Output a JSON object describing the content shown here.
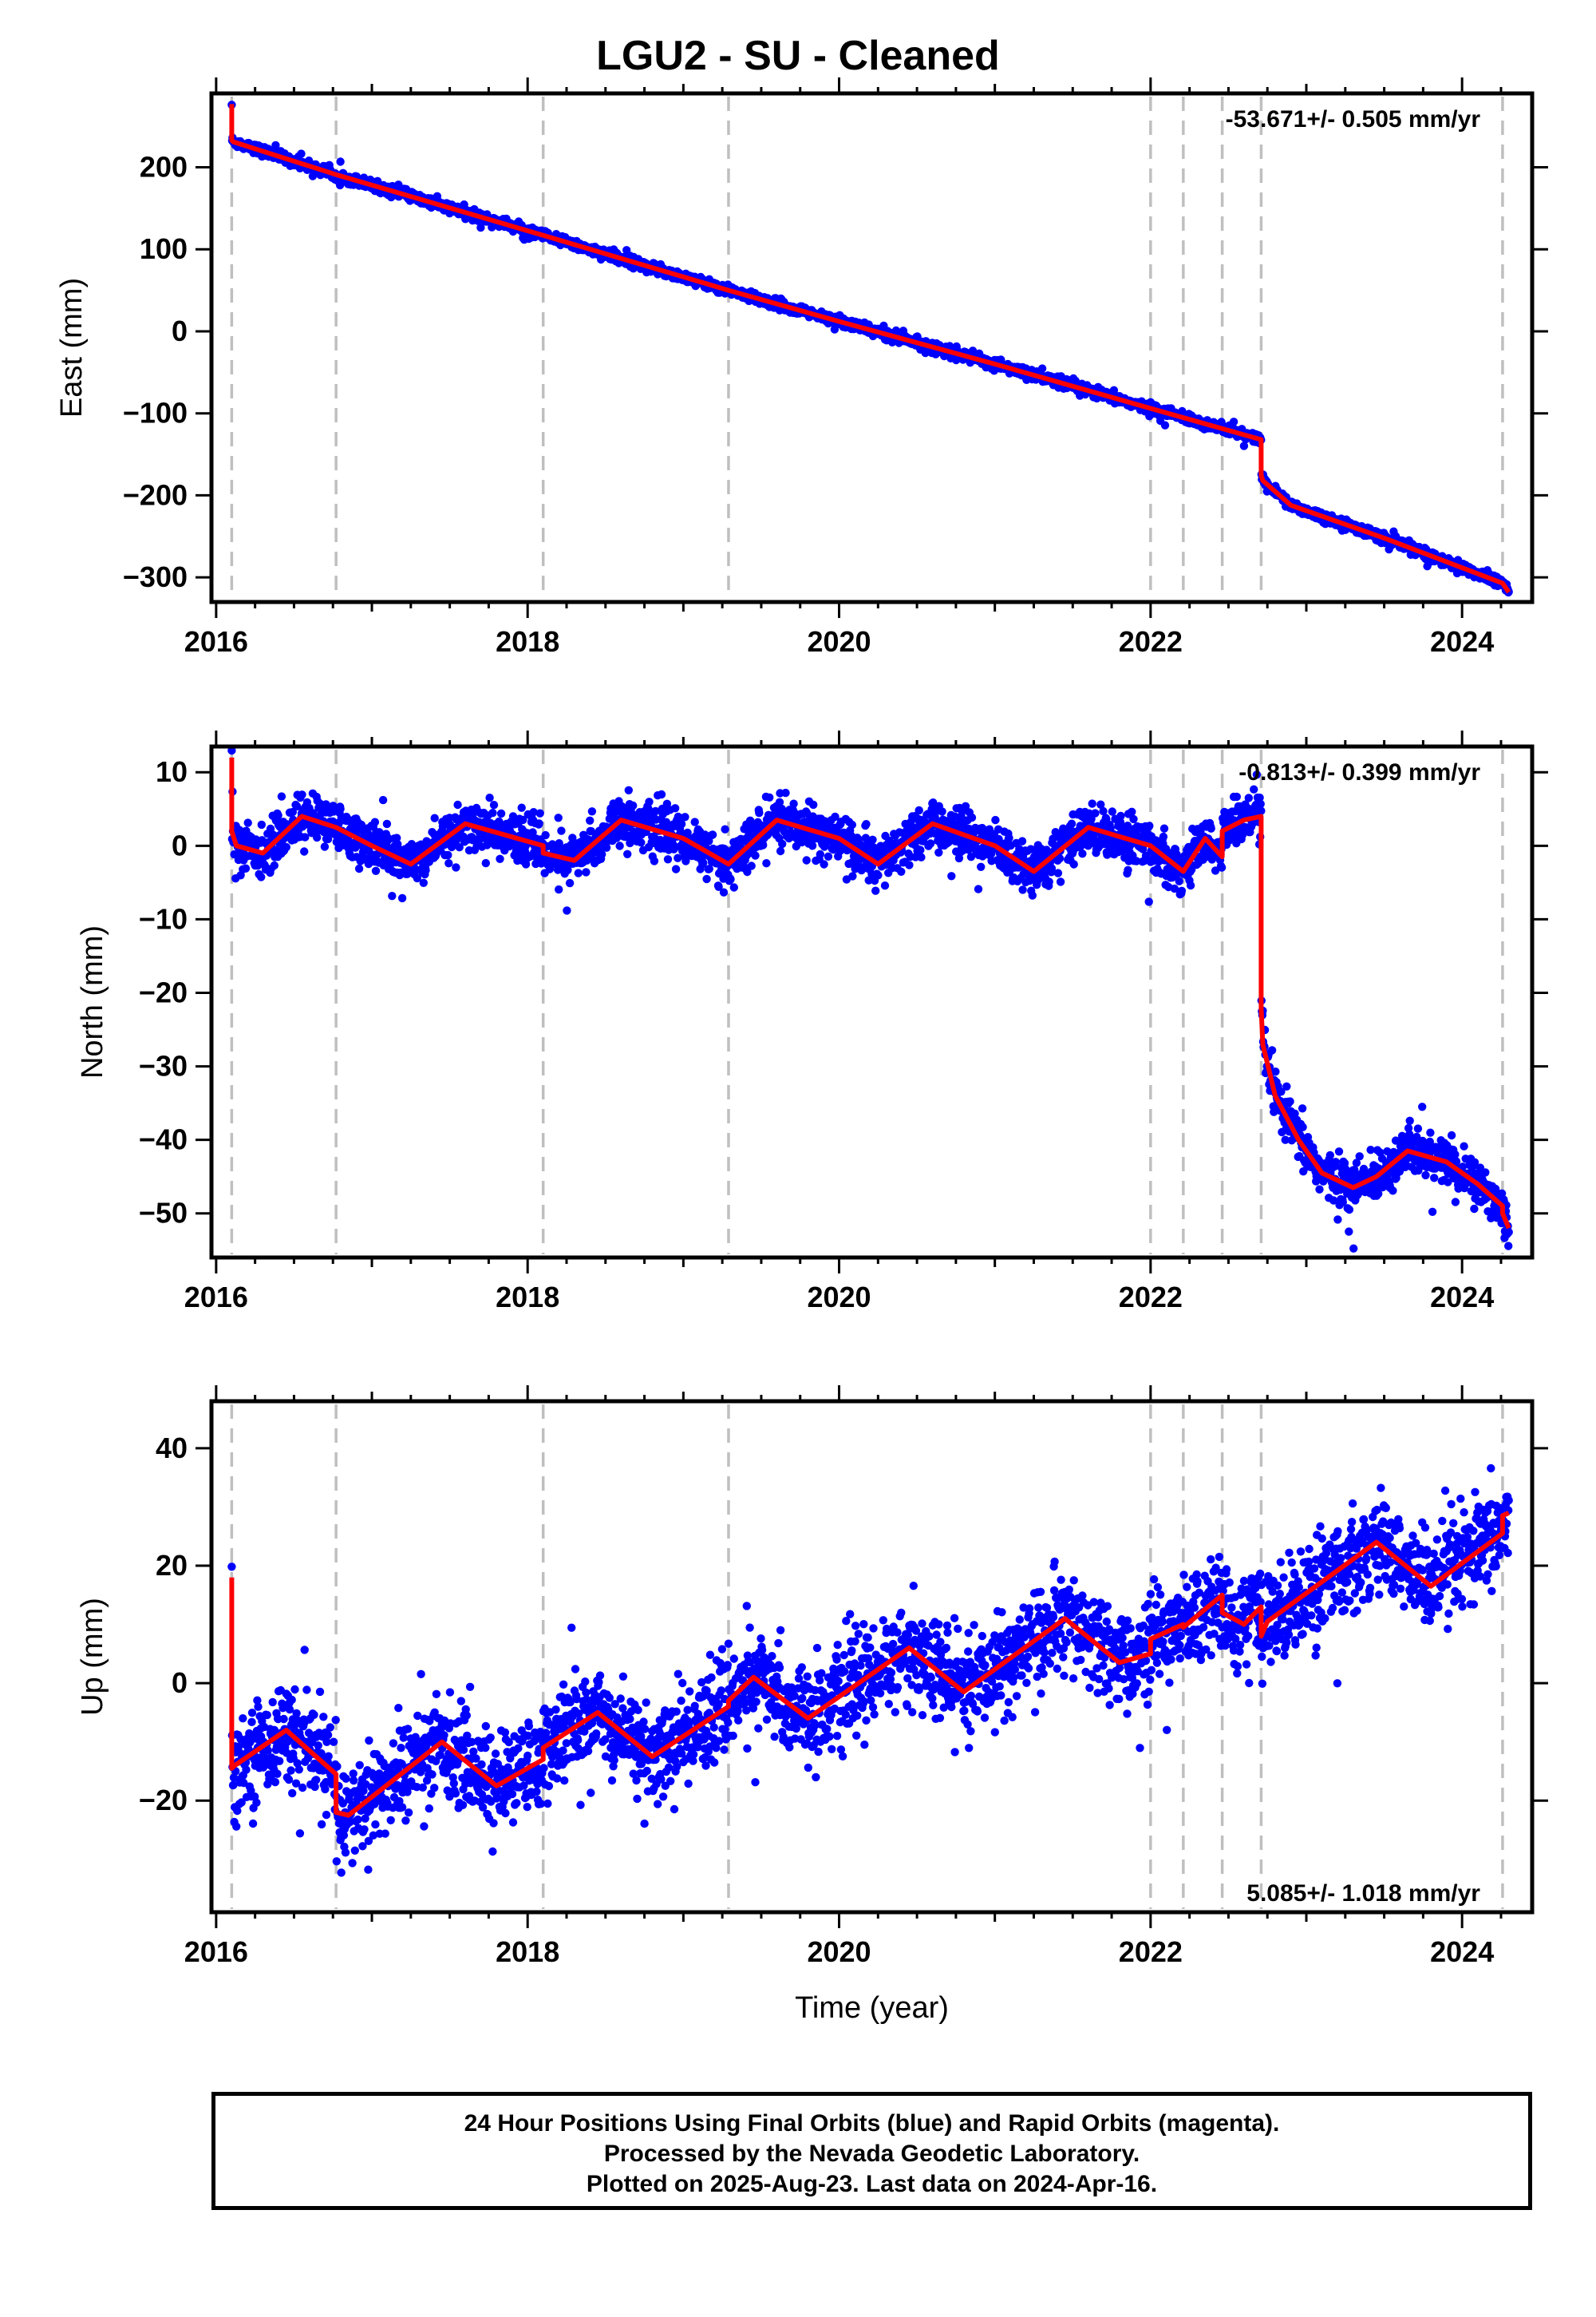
{
  "title": "LGU2  - SU - Cleaned",
  "footer": {
    "line1": "24 Hour Positions Using Final Orbits (blue) and Rapid Orbits (magenta).",
    "line2": "Processed by the Nevada Geodetic Laboratory.",
    "line3": "Plotted on 2025-Aug-23. Last data on 2024-Apr-16."
  },
  "colors": {
    "data": "#0000ff",
    "model": "#ff0000",
    "event_lines": "#bfbfbf"
  },
  "chart_data": [
    {
      "type": "scatter",
      "ylabel": "East (mm)",
      "xlabel": "",
      "rate_label": "-53.671+/- 0.505 mm/yr",
      "rate_position": "top-right",
      "xlim": [
        2015.97,
        2024.45
      ],
      "ylim": [
        -330,
        290
      ],
      "xticks": [
        2016,
        2018,
        2020,
        2022,
        2024
      ],
      "yticks": [
        -300,
        -200,
        -100,
        0,
        100,
        200
      ],
      "event_lines": [
        2016.1,
        2016.77,
        2018.1,
        2019.29,
        2022.0,
        2022.21,
        2022.46,
        2022.71,
        2024.26
      ],
      "model": {
        "x": [
          2016.1,
          2016.1,
          2016.11,
          2016.77,
          2018.1,
          2019.29,
          2020.0,
          2021.0,
          2022.0,
          2022.71,
          2022.71,
          2022.72,
          2022.9,
          2023.5,
          2024.26,
          2024.3
        ],
        "y": [
          277,
          233,
          231,
          191,
          117,
          50,
          12,
          -40,
          -94,
          -132,
          -175,
          -182,
          -212,
          -252,
          -307,
          -318
        ]
      },
      "data_spec": {
        "x_start": 2016.1,
        "x_end": 2024.3,
        "scatter_sd": 3.0,
        "seasonal_amp": 0
      }
    },
    {
      "type": "scatter",
      "ylabel": "North (mm)",
      "xlabel": "",
      "rate_label": "-0.813+/- 0.399 mm/yr",
      "rate_position": "top-right",
      "xlim": [
        2015.97,
        2024.45
      ],
      "ylim": [
        -56,
        13.5
      ],
      "xticks": [
        2016,
        2018,
        2020,
        2022,
        2024
      ],
      "yticks": [
        -50,
        -40,
        -30,
        -20,
        -10,
        0,
        10
      ],
      "event_lines": [
        2016.1,
        2016.77,
        2018.1,
        2019.29,
        2022.0,
        2022.21,
        2022.46,
        2022.71,
        2024.26
      ],
      "model": {
        "x": [
          2016.1,
          2016.1,
          2016.13,
          2016.3,
          2016.55,
          2016.77,
          2017.0,
          2017.25,
          2017.6,
          2018.1,
          2018.1,
          2018.3,
          2018.6,
          2019.0,
          2019.29,
          2019.6,
          2020.0,
          2020.25,
          2020.6,
          2021.0,
          2021.25,
          2021.6,
          2022.0,
          2022.21,
          2022.35,
          2022.46,
          2022.46,
          2022.6,
          2022.71,
          2022.71,
          2022.72,
          2022.8,
          2022.95,
          2023.1,
          2023.3,
          2023.45,
          2023.65,
          2023.9,
          2024.1,
          2024.26,
          2024.26,
          2024.3
        ],
        "y": [
          12,
          2,
          0,
          -1,
          4,
          2.5,
          0,
          -2.5,
          3,
          0,
          -1,
          -2,
          3.5,
          1,
          -2.5,
          3.5,
          1,
          -2.5,
          3,
          0,
          -3.5,
          2.5,
          0,
          -3.5,
          1,
          -1.5,
          2,
          3.5,
          4,
          -22,
          -27,
          -34,
          -40,
          -44.5,
          -46.5,
          -45,
          -41.5,
          -43,
          -46,
          -49,
          -50,
          -52
        ]
      },
      "data_spec": {
        "x_start": 2016.1,
        "x_end": 2024.3,
        "scatter_sd": 1.6,
        "seasonal_amp": 0
      }
    },
    {
      "type": "scatter",
      "ylabel": "Up (mm)",
      "xlabel": "Time (year)",
      "rate_label": "5.085+/- 1.018 mm/yr",
      "rate_position": "bottom-right",
      "xlim": [
        2015.97,
        2024.45
      ],
      "ylim": [
        -39,
        48
      ],
      "xticks": [
        2016,
        2018,
        2020,
        2022,
        2024
      ],
      "yticks": [
        -20,
        0,
        20,
        40
      ],
      "event_lines": [
        2016.1,
        2016.77,
        2018.1,
        2019.29,
        2022.0,
        2022.21,
        2022.46,
        2022.71,
        2024.26
      ],
      "model": {
        "x": [
          2016.1,
          2016.1,
          2016.12,
          2016.45,
          2016.77,
          2016.77,
          2016.85,
          2017.45,
          2017.8,
          2018.1,
          2018.1,
          2018.45,
          2018.8,
          2019.29,
          2019.29,
          2019.45,
          2019.8,
          2020.45,
          2020.8,
          2021.45,
          2021.8,
          2022.0,
          2022.0,
          2022.21,
          2022.21,
          2022.46,
          2022.46,
          2022.6,
          2022.71,
          2022.71,
          2022.75,
          2023.45,
          2023.8,
          2024.26,
          2024.26,
          2024.3
        ],
        "y": [
          18,
          -14.5,
          -14,
          -8,
          -15.5,
          -22,
          -22.5,
          -10,
          -17.5,
          -13,
          -11,
          -5,
          -12.5,
          -4,
          -3,
          1,
          -6,
          6,
          -1.5,
          11,
          3.5,
          5,
          7.5,
          10,
          9.5,
          15,
          12,
          10,
          13,
          8,
          10.5,
          24,
          16.5,
          25.5,
          28.5,
          29
        ]
      },
      "data_spec": {
        "x_start": 2016.1,
        "x_end": 2024.3,
        "scatter_sd": 4.0,
        "seasonal_amp": 0
      }
    }
  ]
}
